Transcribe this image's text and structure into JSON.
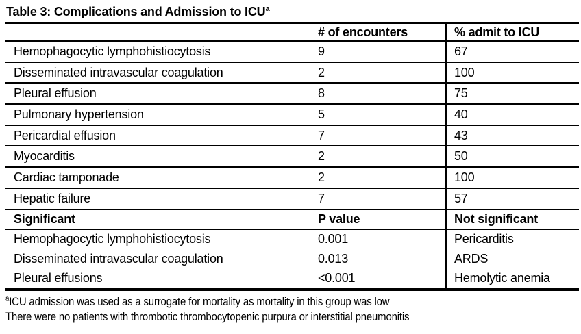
{
  "colors": {
    "text": "#000000",
    "background": "#ffffff",
    "border": "#000000"
  },
  "title": {
    "text": "Table 3: Complications and Admission to ICU",
    "superscript": "a"
  },
  "table": {
    "section1": {
      "headers": [
        "",
        "# of encounters",
        "% admit to ICU"
      ],
      "rows": [
        [
          "Hemophagocytic lymphohistiocytosis",
          "9",
          "67"
        ],
        [
          "Disseminated intravascular coagulation",
          "2",
          "100"
        ],
        [
          "Pleural effusion",
          "8",
          "75"
        ],
        [
          "Pulmonary hypertension",
          "5",
          "40"
        ],
        [
          "Pericardial effusion",
          "7",
          "43"
        ],
        [
          "Myocarditis",
          "2",
          "50"
        ],
        [
          "Cardiac tamponade",
          "2",
          "100"
        ],
        [
          "Hepatic failure",
          "7",
          "57"
        ]
      ]
    },
    "section2": {
      "headers": [
        "Significant",
        "P value",
        "Not significant"
      ],
      "rows": [
        [
          "Hemophagocytic lymphohistiocytosis",
          "0.001",
          "Pericarditis"
        ],
        [
          "Disseminated intravascular coagulation",
          "0.013",
          "ARDS"
        ],
        [
          "Pleural effusions",
          "<0.001",
          "Hemolytic anemia"
        ]
      ]
    }
  },
  "footnotes": [
    {
      "superscript": "a",
      "text": "ICU admission was used as a surrogate for mortality as mortality in this group was low"
    },
    {
      "superscript": "",
      "text": "There were no patients with thrombotic thrombocytopenic purpura or interstitial pneumonitis"
    }
  ]
}
